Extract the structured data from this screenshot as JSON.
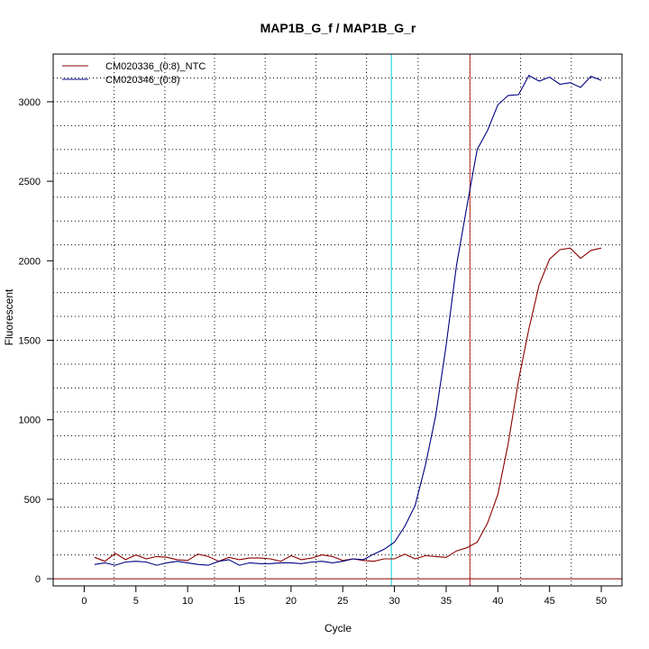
{
  "chart_data": {
    "type": "line",
    "title": "MAP1B_G_f / MAP1B_G_r",
    "xlabel": "Cycle",
    "ylabel": "Fluorescent",
    "xlim": [
      -3,
      52
    ],
    "ylim": [
      -45,
      3300
    ],
    "x_ticks": [
      0,
      5,
      10,
      15,
      20,
      25,
      30,
      35,
      40,
      45,
      50
    ],
    "y_ticks": [
      0,
      500,
      1000,
      1500,
      2000,
      2500,
      3000
    ],
    "grid": true,
    "vertical_dotted_lines": [
      2.9,
      7.8,
      12.6,
      17.5,
      22.4,
      27.3,
      32.3,
      37.3,
      42.2,
      47.1
    ],
    "horizontal_dotted_lines": [
      150,
      300,
      450,
      600,
      750,
      900,
      1050,
      1200,
      1350,
      1500,
      1650,
      1800,
      1950,
      2100,
      2250,
      2400,
      2550,
      2700,
      2850,
      3000,
      3150
    ],
    "threshold": 0,
    "threshold_color": "#8B0000",
    "cycle_markers": [
      {
        "x": 29.7,
        "color": "#00CED1"
      },
      {
        "x": 37.3,
        "color": "#B22222"
      }
    ],
    "legend_position": "top-left",
    "x": [
      1,
      2,
      3,
      4,
      5,
      6,
      7,
      8,
      9,
      10,
      11,
      12,
      13,
      14,
      15,
      16,
      17,
      18,
      19,
      20,
      21,
      22,
      23,
      24,
      25,
      26,
      27,
      28,
      29,
      30,
      31,
      32,
      33,
      34,
      35,
      36,
      37,
      38,
      39,
      40,
      41,
      42,
      43,
      44,
      45,
      46,
      47,
      48,
      49,
      50
    ],
    "series": [
      {
        "name": "CM020336_(0:8)_NTC",
        "color": "#8B0000",
        "values": [
          135,
          110,
          160,
          120,
          150,
          125,
          140,
          135,
          120,
          115,
          155,
          140,
          110,
          135,
          120,
          130,
          130,
          125,
          110,
          145,
          120,
          130,
          150,
          140,
          115,
          125,
          115,
          110,
          125,
          125,
          155,
          125,
          145,
          140,
          135,
          175,
          195,
          230,
          350,
          530,
          850,
          1250,
          1570,
          1850,
          2010,
          2070,
          2080,
          2015,
          2065,
          2080
        ]
      },
      {
        "name": "CM020346_(0:8)",
        "color": "#000080",
        "values": [
          90,
          100,
          85,
          105,
          110,
          105,
          85,
          100,
          110,
          100,
          90,
          85,
          110,
          120,
          85,
          100,
          95,
          95,
          100,
          100,
          95,
          105,
          110,
          100,
          110,
          125,
          120,
          155,
          185,
          230,
          330,
          460,
          715,
          1030,
          1470,
          1970,
          2340,
          2700,
          2820,
          2980,
          3040,
          3045,
          3165,
          3130,
          3155,
          3110,
          3120,
          3090,
          3160,
          3135
        ]
      }
    ]
  }
}
